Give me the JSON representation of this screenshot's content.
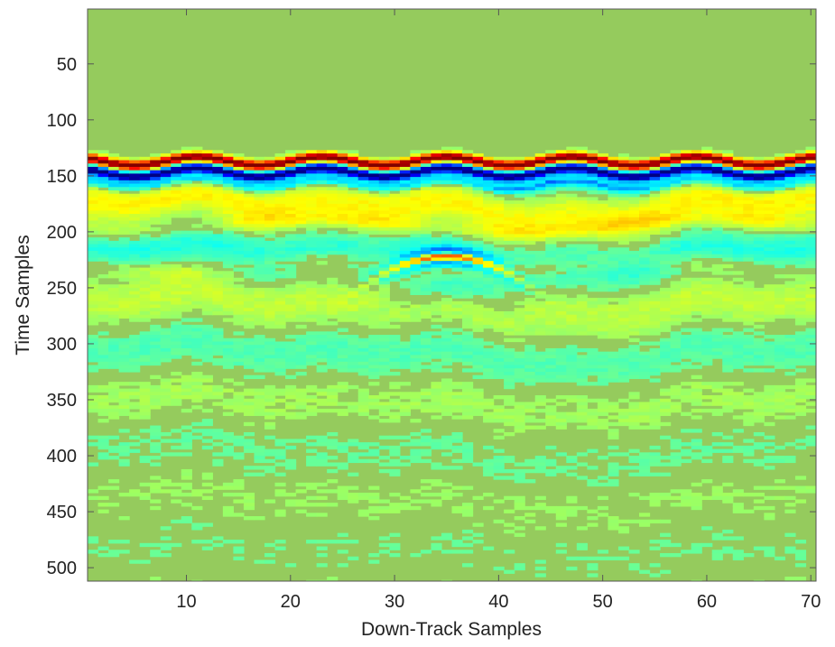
{
  "chart_data": {
    "type": "heatmap",
    "title": "",
    "xlabel": "Down-Track Samples",
    "ylabel": "Time Samples",
    "xlim": [
      0.5,
      70.5
    ],
    "ylim": [
      512,
      1
    ],
    "x_ticks": [
      10,
      20,
      30,
      40,
      50,
      60,
      70
    ],
    "y_ticks": [
      50,
      100,
      150,
      200,
      250,
      300,
      350,
      400,
      450,
      500
    ],
    "x_tick_labels": [
      "10",
      "20",
      "30",
      "40",
      "50",
      "60",
      "70"
    ],
    "y_tick_labels": [
      "50",
      "100",
      "150",
      "200",
      "250",
      "300",
      "350",
      "400",
      "450",
      "500"
    ],
    "grid": false,
    "colormap": "jet",
    "colorbar": false,
    "background_color": "#95cb5d",
    "features": {
      "ground_surface_reflection": {
        "positive_band_time_center": 137,
        "negative_band_time_center": 148,
        "undulation_period_traces": 12,
        "undulation_amplitude_samples": 4,
        "colors": [
          "#8b1010",
          "#1a1a8c"
        ]
      },
      "shallow_layers_time_range": [
        155,
        250
      ],
      "hyperbolic_target": {
        "apex_trace": 35,
        "apex_time_sample": 222,
        "colors": [
          "#d43a1f",
          "#ffe23a",
          "#3a6fd8"
        ]
      }
    }
  }
}
